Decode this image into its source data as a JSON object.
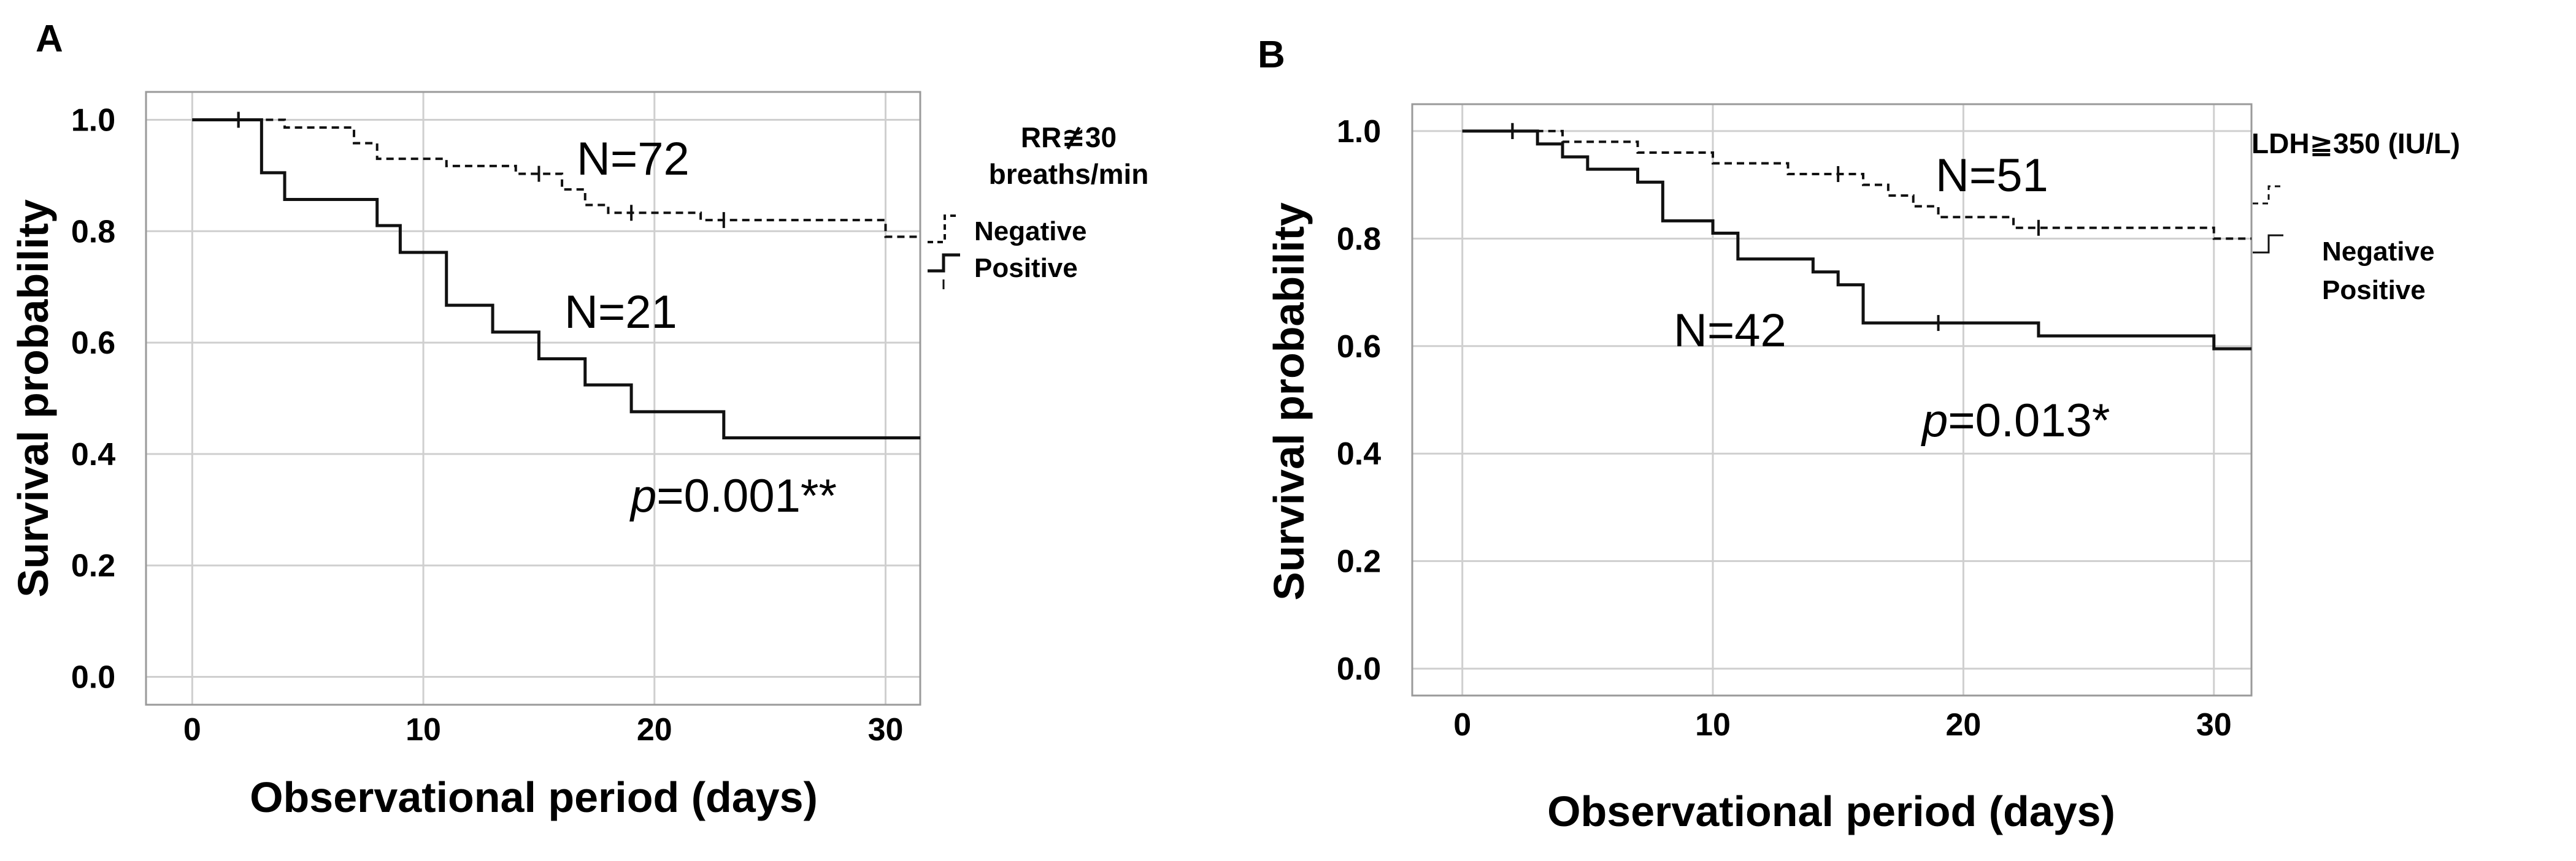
{
  "chart_data": [
    {
      "type": "line",
      "panel_label": "A",
      "xlabel": "Observational period (days)",
      "ylabel": "Survival probability",
      "xlim": [
        -2,
        31.5
      ],
      "ylim": [
        -0.05,
        1.05
      ],
      "xticks": [
        0,
        10,
        20,
        30
      ],
      "yticks": [
        0.0,
        0.2,
        0.4,
        0.6,
        0.8,
        1.0
      ],
      "ytick_labels": [
        "0.0",
        "0.2",
        "0.4",
        "0.6",
        "0.8",
        "1.0"
      ],
      "legend_title_lines": [
        "RR≇30",
        "breaths/min"
      ],
      "series": [
        {
          "name": "Negative",
          "style": "dashed",
          "n_label": "N=72",
          "steps": [
            [
              0,
              1.0
            ],
            [
              4,
              0.986
            ],
            [
              7,
              0.958
            ],
            [
              8,
              0.93
            ],
            [
              11,
              0.917
            ],
            [
              14,
              0.903
            ],
            [
              16,
              0.875
            ],
            [
              17,
              0.847
            ],
            [
              18,
              0.833
            ],
            [
              20,
              0.833
            ],
            [
              22,
              0.82
            ],
            [
              30,
              0.79
            ],
            [
              31.5,
              0.79
            ]
          ],
          "censors": [
            [
              2,
              1.0
            ],
            [
              15,
              0.903
            ],
            [
              19,
              0.833
            ],
            [
              23,
              0.82
            ]
          ]
        },
        {
          "name": "Positive",
          "style": "solid",
          "n_label": "N=21",
          "steps": [
            [
              0,
              1.0
            ],
            [
              3,
              0.905
            ],
            [
              4,
              0.857
            ],
            [
              8,
              0.81
            ],
            [
              9,
              0.762
            ],
            [
              11,
              0.667
            ],
            [
              13,
              0.619
            ],
            [
              15,
              0.571
            ],
            [
              17,
              0.524
            ],
            [
              19,
              0.476
            ],
            [
              23,
              0.429
            ],
            [
              31.5,
              0.429
            ]
          ],
          "censors": [
            [
              2,
              1.0
            ]
          ]
        }
      ],
      "p_value": {
        "p": "p",
        "rest": "=0.001**"
      }
    },
    {
      "type": "line",
      "panel_label": "B",
      "xlabel": "Observational period (days)",
      "ylabel": "Survival probability",
      "xlim": [
        -2,
        31.5
      ],
      "ylim": [
        -0.05,
        1.05
      ],
      "xticks": [
        0,
        10,
        20,
        30
      ],
      "yticks": [
        0.0,
        0.2,
        0.4,
        0.6,
        0.8,
        1.0
      ],
      "ytick_labels": [
        "0.0",
        "0.2",
        "0.4",
        "0.6",
        "0.8",
        "1.0"
      ],
      "legend_title_lines": [
        "LDH≧350 (IU/L)"
      ],
      "series": [
        {
          "name": "Negative",
          "style": "dashed",
          "n_label": "N=51",
          "steps": [
            [
              0,
              1.0
            ],
            [
              4,
              0.98
            ],
            [
              7,
              0.96
            ],
            [
              10,
              0.94
            ],
            [
              13,
              0.92
            ],
            [
              16,
              0.9
            ],
            [
              17,
              0.88
            ],
            [
              18,
              0.86
            ],
            [
              19,
              0.84
            ],
            [
              22,
              0.82
            ],
            [
              30,
              0.8
            ],
            [
              31.5,
              0.8
            ]
          ],
          "censors": [
            [
              2,
              1.0
            ],
            [
              15,
              0.92
            ],
            [
              23,
              0.82
            ]
          ]
        },
        {
          "name": "Positive",
          "style": "solid",
          "n_label": "N=42",
          "steps": [
            [
              0,
              1.0
            ],
            [
              3,
              0.976
            ],
            [
              4,
              0.952
            ],
            [
              5,
              0.929
            ],
            [
              7,
              0.905
            ],
            [
              8,
              0.833
            ],
            [
              10,
              0.81
            ],
            [
              11,
              0.762
            ],
            [
              14,
              0.738
            ],
            [
              15,
              0.714
            ],
            [
              16,
              0.643
            ],
            [
              23,
              0.619
            ],
            [
              30,
              0.595
            ],
            [
              31.5,
              0.595
            ]
          ],
          "censors": [
            [
              2,
              1.0
            ],
            [
              19,
              0.643
            ]
          ]
        }
      ],
      "p_value": {
        "p": "p",
        "rest": "=0.013*"
      }
    }
  ]
}
